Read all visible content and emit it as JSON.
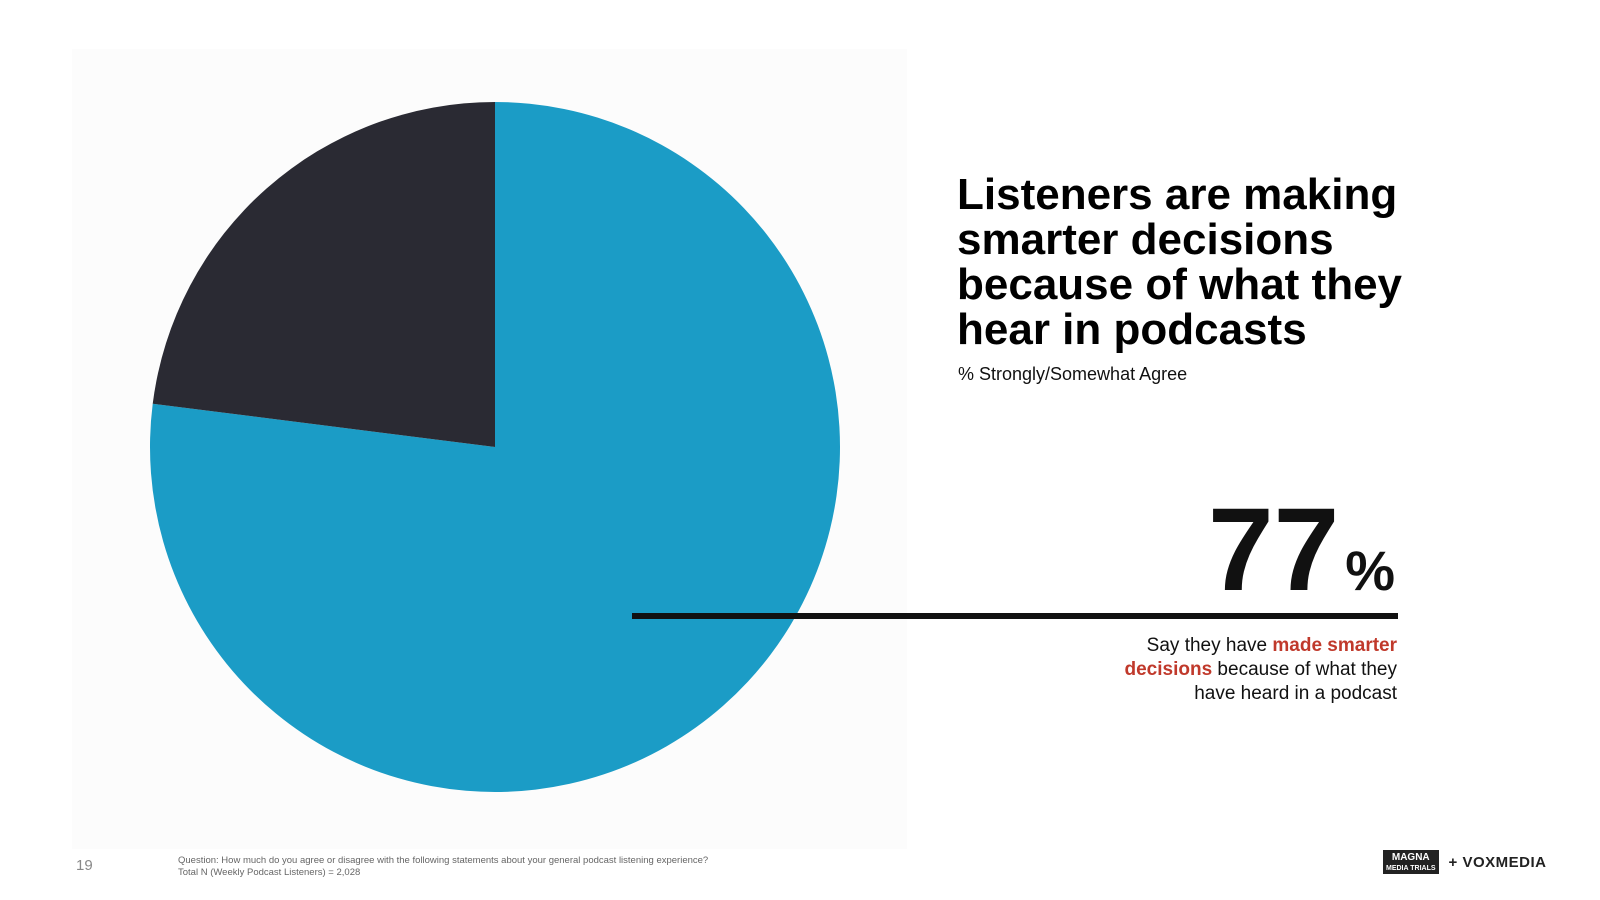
{
  "chart_data": {
    "type": "pie",
    "title": "Listeners are making smarter decisions because of what they hear in podcasts",
    "subtitle": "% Strongly/Somewhat Agree",
    "values": [
      77,
      23
    ],
    "value_labels": [
      "77%",
      null
    ],
    "colors": [
      "#1b9cc6",
      "#2a2a33"
    ]
  },
  "callout": {
    "parts": [
      "Say they have ",
      "made smarter decisions",
      " because of what they have heard in a podcast"
    ]
  },
  "footer": {
    "page": "19",
    "notes": [
      "Question: How much do you agree or disagree with the following statements about your general podcast listening experience?",
      "Total N (Weekly Podcast Listeners) = 2,028"
    ],
    "logos": [
      "MAGNA",
      "MEDIA TRIALS",
      "+ VOXMEDIA"
    ]
  }
}
